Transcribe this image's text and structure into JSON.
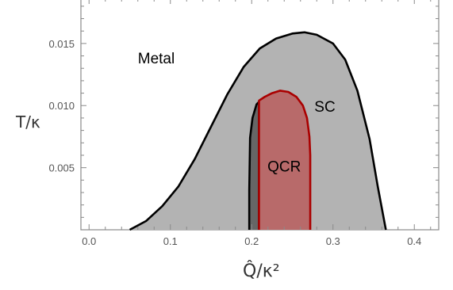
{
  "chart_data": {
    "type": "area",
    "xlabel": "Q̂/κ²",
    "ylabel": "T/κ",
    "xlim": [
      -0.01,
      0.43
    ],
    "ylim": [
      0.0,
      0.0185
    ],
    "x_ticks": [
      {
        "value": 0.0,
        "label": "0.0"
      },
      {
        "value": 0.1,
        "label": "0.1"
      },
      {
        "value": 0.2,
        "label": "0.2"
      },
      {
        "value": 0.3,
        "label": "0.3"
      },
      {
        "value": 0.4,
        "label": "0.4"
      }
    ],
    "y_ticks": [
      {
        "value": 0.005,
        "label": "0.005"
      },
      {
        "value": 0.01,
        "label": "0.010"
      },
      {
        "value": 0.015,
        "label": "0.015"
      }
    ],
    "regions": [
      {
        "name": "SC",
        "label": "SC",
        "label_at": [
          0.29,
          0.0095
        ],
        "fill": "#b3b3b3",
        "stroke": "#000000",
        "boundary": [
          [
            0.05,
            0.0
          ],
          [
            0.07,
            0.0007
          ],
          [
            0.09,
            0.0019
          ],
          [
            0.11,
            0.0035
          ],
          [
            0.13,
            0.0057
          ],
          [
            0.15,
            0.0083
          ],
          [
            0.17,
            0.0109
          ],
          [
            0.19,
            0.0131
          ],
          [
            0.21,
            0.0146
          ],
          [
            0.23,
            0.0154
          ],
          [
            0.25,
            0.0158
          ],
          [
            0.265,
            0.0159
          ],
          [
            0.28,
            0.0157
          ],
          [
            0.3,
            0.015
          ],
          [
            0.315,
            0.0137
          ],
          [
            0.33,
            0.0112
          ],
          [
            0.345,
            0.0073
          ],
          [
            0.355,
            0.0035
          ],
          [
            0.365,
            0.0
          ]
        ]
      },
      {
        "name": "SC-inner",
        "fill": "#666666",
        "stroke": "#000000",
        "boundary": [
          [
            0.197,
            0.0
          ],
          [
            0.197,
            0.0032
          ],
          [
            0.198,
            0.0074
          ],
          [
            0.201,
            0.009
          ],
          [
            0.206,
            0.0101
          ],
          [
            0.209,
            0.0103
          ],
          [
            0.209,
            0.0
          ]
        ]
      },
      {
        "name": "QCR",
        "label": "QCR",
        "label_at": [
          0.24,
          0.0047
        ],
        "fill": "#b86a6a",
        "stroke": "#aa0000",
        "boundary": [
          [
            0.209,
            0.0
          ],
          [
            0.209,
            0.0104
          ],
          [
            0.216,
            0.0107
          ],
          [
            0.225,
            0.011
          ],
          [
            0.235,
            0.0112
          ],
          [
            0.245,
            0.0111
          ],
          [
            0.255,
            0.0107
          ],
          [
            0.263,
            0.01
          ],
          [
            0.268,
            0.009
          ],
          [
            0.271,
            0.0075
          ],
          [
            0.272,
            0.006
          ],
          [
            0.272,
            0.0
          ]
        ]
      }
    ],
    "annotations": [
      {
        "label": "Metal",
        "at": [
          0.06,
          0.0134
        ]
      }
    ]
  }
}
